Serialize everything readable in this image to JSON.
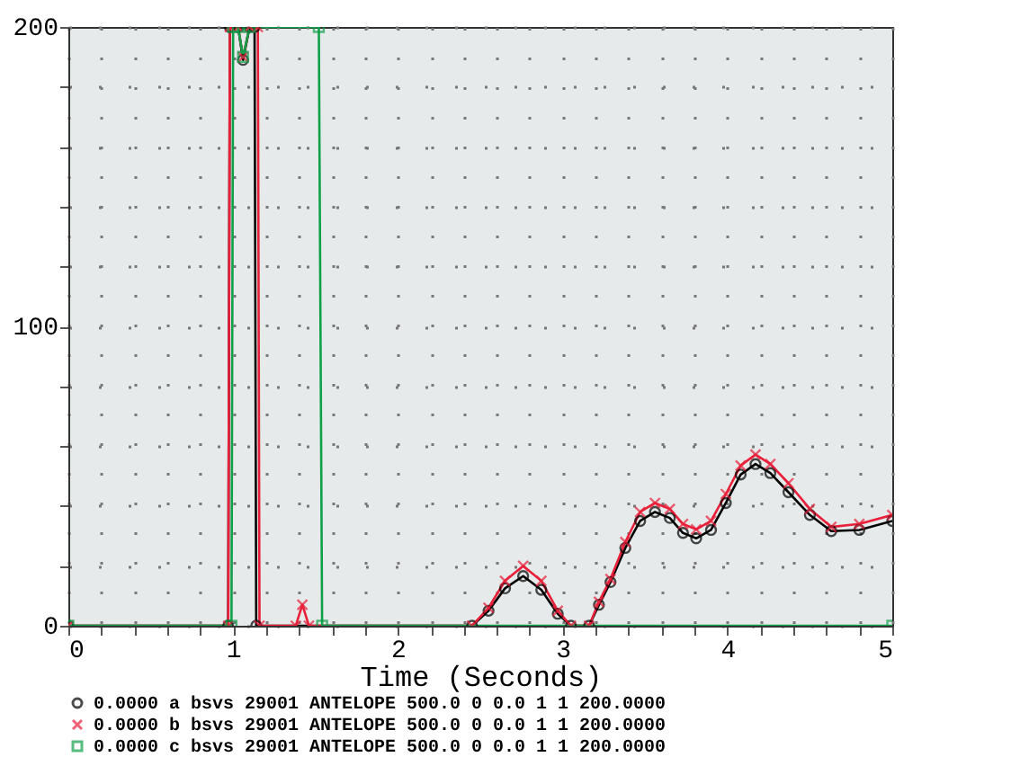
{
  "chart_data": {
    "type": "line",
    "xlabel": "Time (Seconds)",
    "xlim": [
      0,
      5
    ],
    "ylim": [
      0,
      200
    ],
    "xticks": [
      0,
      {
        "value": 0.2,
        "label": null
      },
      {
        "value": 0.4,
        "label": null
      },
      {
        "value": 0.6,
        "label": null
      },
      {
        "value": 0.8,
        "label": null
      },
      1,
      {
        "value": 1.2,
        "label": null
      },
      {
        "value": 1.4,
        "label": null
      },
      {
        "value": 1.6,
        "label": null
      },
      {
        "value": 1.8,
        "label": null
      },
      2,
      {
        "value": 2.2,
        "label": null
      },
      {
        "value": 2.4,
        "label": null
      },
      {
        "value": 2.6,
        "label": null
      },
      {
        "value": 2.8,
        "label": null
      },
      3,
      {
        "value": 3.2,
        "label": null
      },
      {
        "value": 3.4,
        "label": null
      },
      {
        "value": 3.6,
        "label": null
      },
      {
        "value": 3.8,
        "label": null
      },
      4,
      {
        "value": 4.2,
        "label": null
      },
      {
        "value": 4.4,
        "label": null
      },
      {
        "value": 4.6,
        "label": null
      },
      {
        "value": 4.8,
        "label": null
      },
      5
    ],
    "yticks": [
      0,
      {
        "value": 20,
        "label": null
      },
      {
        "value": 40,
        "label": null
      },
      {
        "value": 60,
        "label": null
      },
      {
        "value": 80,
        "label": null
      },
      100,
      {
        "value": 120,
        "label": null
      },
      {
        "value": 140,
        "label": null
      },
      {
        "value": 160,
        "label": null
      },
      {
        "value": 180,
        "label": null
      },
      200
    ],
    "grid": true,
    "legend": "bottom",
    "line_style": "solid",
    "series": [
      {
        "name": "0.0000 a bsvs 29001 ANTELOPE 500.0 0 0.0 1 1 200.0000",
        "color": "#000000",
        "marker": "circle",
        "x": [
          0,
          0.97,
          0.98,
          1.03,
          1.06,
          1.1,
          1.13,
          1.14,
          2.45,
          2.55,
          2.65,
          2.76,
          2.87,
          2.97,
          3.05,
          3.16,
          3.22,
          3.29,
          3.38,
          3.47,
          3.56,
          3.65,
          3.73,
          3.81,
          3.9,
          3.99,
          4.08,
          4.17,
          4.26,
          4.37,
          4.5,
          4.63,
          4.8,
          5
        ],
        "values": [
          0,
          0,
          200,
          200,
          189,
          200,
          200,
          0,
          0,
          5,
          12.5,
          16.6,
          12,
          4,
          0,
          0,
          7,
          14.6,
          26,
          35,
          38,
          36,
          31,
          29.2,
          32,
          41,
          50.5,
          54,
          51,
          44.6,
          37,
          31.6,
          32,
          35
        ]
      },
      {
        "name": "0.0000 b bsvs 29001 ANTELOPE 500.0 0 0.0 1 1 200.0000",
        "color": "#e8203a",
        "marker": "cross",
        "x": [
          0,
          0.97,
          0.98,
          1.03,
          1.06,
          1.1,
          1.15,
          1.16,
          1.38,
          1.42,
          1.46,
          2.45,
          2.55,
          2.65,
          2.76,
          2.87,
          2.97,
          3.05,
          3.16,
          3.22,
          3.29,
          3.38,
          3.47,
          3.56,
          3.65,
          3.73,
          3.81,
          3.9,
          3.99,
          4.08,
          4.17,
          4.26,
          4.37,
          4.5,
          4.63,
          4.8,
          5
        ],
        "values": [
          0,
          0,
          200,
          200,
          190,
          200,
          200,
          0,
          0,
          7,
          0,
          0,
          6,
          15,
          20,
          15,
          5,
          0,
          0,
          8,
          15.6,
          28,
          38,
          41,
          39,
          34,
          32.2,
          35,
          44,
          53.5,
          57.2,
          54,
          47.6,
          39,
          33,
          34,
          37
        ]
      },
      {
        "name": "0.0000 c bsvs 29001 ANTELOPE 500.0 0 0.0 1 1 200.0000",
        "color": "#10a04a",
        "marker": "square",
        "x": [
          0,
          0.99,
          1.0,
          1.03,
          1.06,
          1.1,
          1.52,
          1.54,
          5
        ],
        "values": [
          0,
          0,
          200,
          200,
          190,
          200,
          200,
          0,
          0
        ]
      }
    ]
  }
}
